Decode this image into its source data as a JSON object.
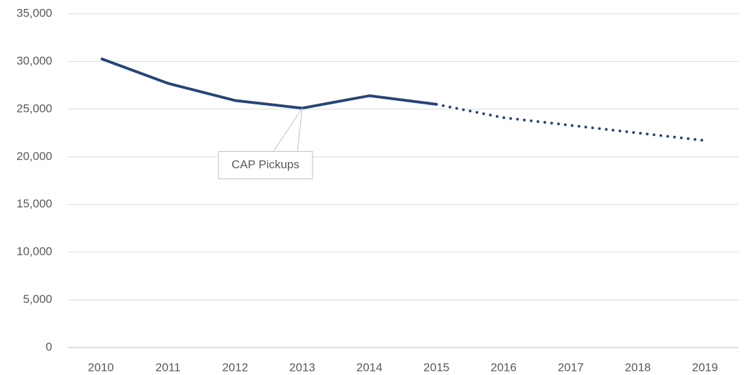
{
  "chart_data": {
    "type": "line",
    "categories": [
      "2010",
      "2011",
      "2012",
      "2013",
      "2014",
      "2015",
      "2016",
      "2017",
      "2018",
      "2019"
    ],
    "series": [
      {
        "color": "#264478",
        "style": "solid",
        "values": [
          30300,
          27700,
          25900,
          25100,
          26400,
          25500,
          null,
          null,
          null,
          null
        ]
      },
      {
        "color": "#264478",
        "style": "dotted",
        "values": [
          null,
          null,
          null,
          null,
          null,
          25500,
          24100,
          23300,
          22500,
          21700
        ]
      }
    ],
    "ylim": [
      0,
      35000
    ],
    "yticks": [
      0,
      {
        "value": 5000,
        "label": "5,000"
      },
      {
        "value": 10000,
        "label": "10,000"
      },
      {
        "value": 15000,
        "label": "15,000"
      },
      {
        "value": 20000,
        "label": "20,000"
      },
      {
        "value": 25000,
        "label": "25,000"
      },
      {
        "value": 30000,
        "label": "30,000"
      },
      {
        "value": 35000,
        "label": "35,000"
      }
    ],
    "grid": true,
    "annotations": [
      {
        "text": "CAP Pickups",
        "x": "2013"
      }
    ]
  }
}
